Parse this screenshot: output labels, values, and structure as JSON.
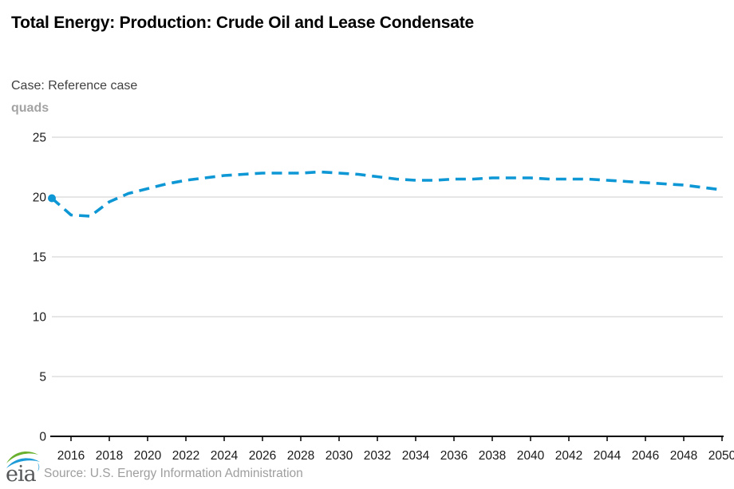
{
  "header": {
    "title": "Total Energy: Production: Crude Oil and Lease Condensate"
  },
  "meta": {
    "case_label": "Case: Reference case",
    "unit_label": "quads"
  },
  "footer": {
    "logo_text": "eia",
    "source": "Source: U.S. Energy Information Administration"
  },
  "colors": {
    "line": "#0e97d5",
    "grid": "#cccccc",
    "axis": "#000000",
    "tick_label": "#1a1a1a",
    "unit_label": "#a3a3a3",
    "source_text": "#9e9e9e",
    "logo_green": "#69b02f",
    "logo_blue": "#1d9bd7"
  },
  "chart_data": {
    "type": "line",
    "title": "Total Energy: Production: Crude Oil and Lease Condensate",
    "subtitle": "Case: Reference case",
    "xlabel": "",
    "ylabel": "quads",
    "xlim": [
      2015,
      2050
    ],
    "ylim": [
      0,
      25
    ],
    "grid": "horizontal",
    "legend": "none",
    "x_ticks": [
      2016,
      2018,
      2020,
      2022,
      2024,
      2026,
      2028,
      2030,
      2032,
      2034,
      2036,
      2038,
      2040,
      2042,
      2044,
      2046,
      2048,
      2050
    ],
    "y_ticks": [
      0,
      5,
      10,
      15,
      20,
      25
    ],
    "x": [
      2015,
      2016,
      2017,
      2018,
      2019,
      2020,
      2021,
      2022,
      2023,
      2024,
      2025,
      2026,
      2027,
      2028,
      2029,
      2030,
      2031,
      2032,
      2033,
      2034,
      2035,
      2036,
      2037,
      2038,
      2039,
      2040,
      2041,
      2042,
      2043,
      2044,
      2045,
      2046,
      2047,
      2048,
      2049,
      2050
    ],
    "series": [
      {
        "name": "Reference case",
        "style": "dashed",
        "start_marker": true,
        "values": [
          19.9,
          18.5,
          18.4,
          19.6,
          20.3,
          20.7,
          21.1,
          21.4,
          21.6,
          21.8,
          21.9,
          22.0,
          22.0,
          22.0,
          22.1,
          22.0,
          21.9,
          21.7,
          21.5,
          21.4,
          21.4,
          21.5,
          21.5,
          21.6,
          21.6,
          21.6,
          21.5,
          21.5,
          21.5,
          21.4,
          21.3,
          21.2,
          21.1,
          21.0,
          20.8,
          20.6
        ]
      }
    ]
  }
}
